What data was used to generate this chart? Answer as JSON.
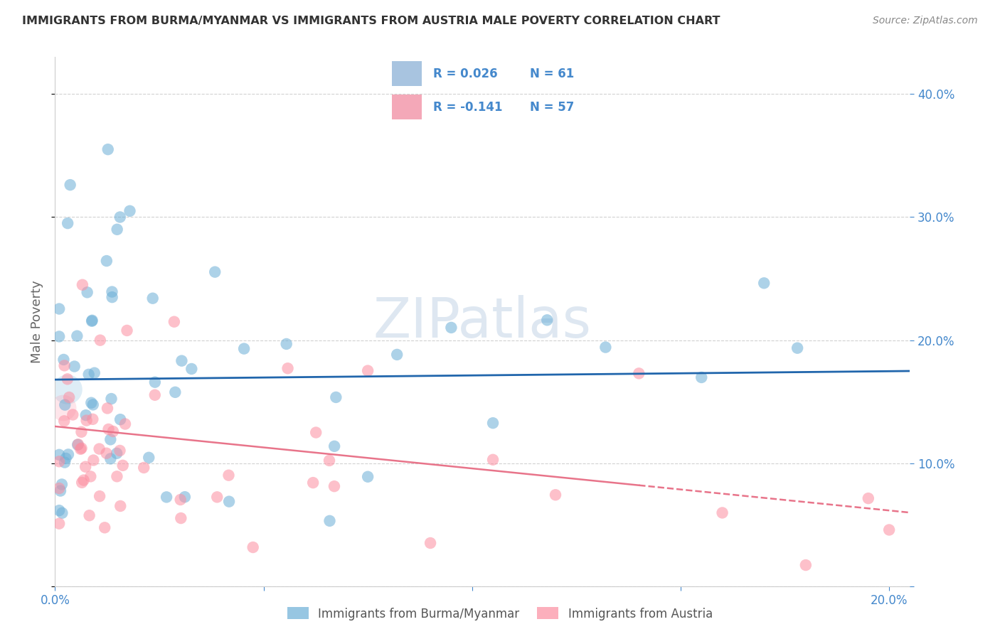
{
  "title": "IMMIGRANTS FROM BURMA/MYANMAR VS IMMIGRANTS FROM AUSTRIA MALE POVERTY CORRELATION CHART",
  "source": "Source: ZipAtlas.com",
  "ylabel_label": "Male Poverty",
  "xlim": [
    0.0,
    0.205
  ],
  "ylim": [
    0.0,
    0.43
  ],
  "xtick_vals": [
    0.0,
    0.05,
    0.1,
    0.15,
    0.2
  ],
  "ytick_vals": [
    0.0,
    0.1,
    0.2,
    0.3,
    0.4
  ],
  "series1_label": "Immigrants from Burma/Myanmar",
  "series2_label": "Immigrants from Austria",
  "series1_color": "#6baed6",
  "series2_color": "#fc8da0",
  "series1_alpha": 0.55,
  "series2_alpha": 0.55,
  "trendline1_color": "#2166ac",
  "trendline2_color": "#e8748a",
  "legend_color": "#4488cc",
  "legend_patch1_color": "#a8c4e0",
  "legend_patch2_color": "#f4a8b8",
  "R1_text": "R = 0.026",
  "N1_text": "N = 61",
  "R2_text": "R = -0.141",
  "N2_text": "N = 57",
  "R1": 0.026,
  "N1": 61,
  "R2": -0.141,
  "N2": 57,
  "watermark": "ZIPatlas",
  "watermark_color": "#c8d8e8",
  "background_color": "#ffffff",
  "grid_color": "#cccccc",
  "title_color": "#333333",
  "axis_tick_color": "#4488cc",
  "ylabel_color": "#666666",
  "source_color": "#888888",
  "trendline1_y_start": 0.168,
  "trendline1_y_end": 0.175,
  "trendline2_y_start": 0.13,
  "trendline2_y_end": 0.06,
  "trendline2_solid_end_x": 0.14
}
